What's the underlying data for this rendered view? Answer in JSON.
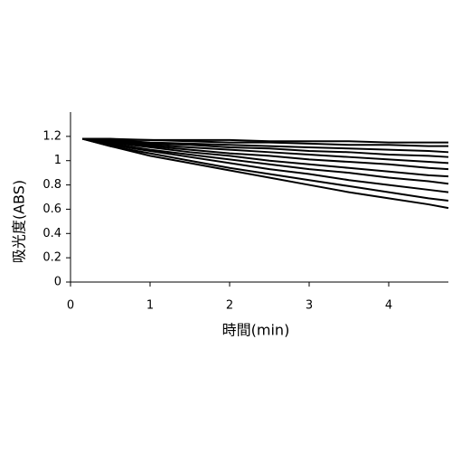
{
  "chart_data": {
    "type": "line",
    "x_label": "時間(min)",
    "y_label": "吸光度(ABS)",
    "x": [
      0.15,
      0.5,
      1,
      1.5,
      2,
      2.5,
      3,
      3.5,
      4,
      4.5,
      4.75
    ],
    "xlim": [
      0,
      4.75
    ],
    "ylim": [
      0,
      1.4
    ],
    "xticks": [
      0,
      1,
      2,
      3,
      4
    ],
    "yticks": [
      0,
      0.2,
      0.4,
      0.6,
      0.8,
      1,
      1.2
    ],
    "grid": false,
    "series": [
      {
        "color": "#000000",
        "values": [
          1.18,
          1.18,
          1.17,
          1.17,
          1.17,
          1.16,
          1.16,
          1.16,
          1.15,
          1.15,
          1.15
        ]
      },
      {
        "color": "#000000",
        "values": [
          1.18,
          1.17,
          1.17,
          1.16,
          1.15,
          1.15,
          1.14,
          1.13,
          1.13,
          1.12,
          1.12
        ]
      },
      {
        "color": "#000000",
        "values": [
          1.18,
          1.17,
          1.15,
          1.14,
          1.13,
          1.12,
          1.11,
          1.1,
          1.09,
          1.08,
          1.07
        ]
      },
      {
        "color": "#000000",
        "values": [
          1.18,
          1.16,
          1.14,
          1.13,
          1.11,
          1.1,
          1.08,
          1.07,
          1.05,
          1.04,
          1.03
        ]
      },
      {
        "color": "#000000",
        "values": [
          1.18,
          1.16,
          1.13,
          1.11,
          1.09,
          1.07,
          1.05,
          1.03,
          1.01,
          0.99,
          0.98
        ]
      },
      {
        "color": "#000000",
        "values": [
          1.18,
          1.15,
          1.12,
          1.09,
          1.06,
          1.04,
          1.01,
          0.99,
          0.97,
          0.94,
          0.93
        ]
      },
      {
        "color": "#000000",
        "values": [
          1.18,
          1.15,
          1.11,
          1.07,
          1.04,
          1.0,
          0.97,
          0.94,
          0.91,
          0.88,
          0.87
        ]
      },
      {
        "color": "#000000",
        "values": [
          1.18,
          1.14,
          1.09,
          1.05,
          1.01,
          0.97,
          0.93,
          0.9,
          0.86,
          0.83,
          0.81
        ]
      },
      {
        "color": "#000000",
        "values": [
          1.18,
          1.13,
          1.08,
          1.03,
          0.98,
          0.93,
          0.89,
          0.84,
          0.8,
          0.76,
          0.74
        ]
      },
      {
        "color": "#000000",
        "values": [
          1.18,
          1.12,
          1.06,
          1.0,
          0.94,
          0.89,
          0.84,
          0.79,
          0.74,
          0.69,
          0.67
        ]
      },
      {
        "color": "#000000",
        "values": [
          1.18,
          1.12,
          1.04,
          0.98,
          0.92,
          0.86,
          0.8,
          0.74,
          0.69,
          0.64,
          0.61
        ]
      }
    ]
  }
}
